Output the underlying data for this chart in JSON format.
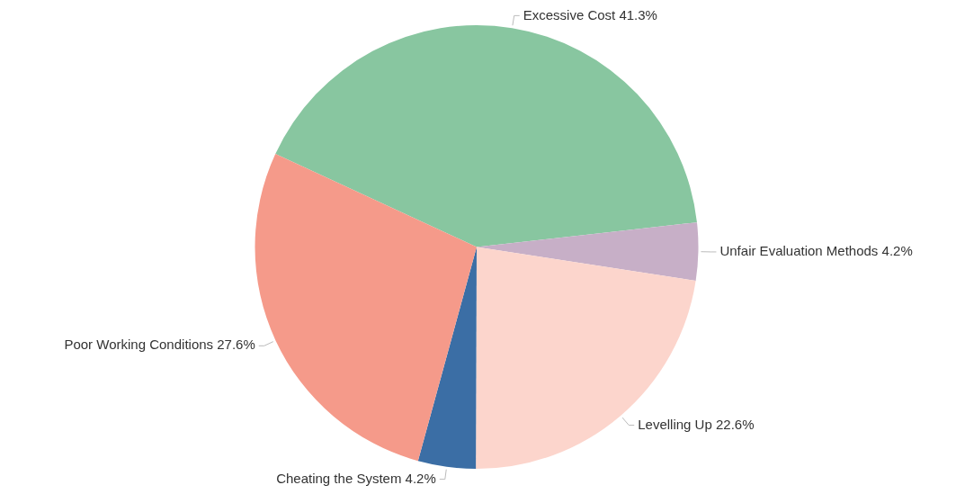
{
  "chart_data": {
    "type": "pie",
    "categories": [
      "Excessive Cost",
      "Unfair Evaluation Methods",
      "Levelling Up",
      "Cheating the System",
      "Poor Working Conditions"
    ],
    "values": [
      41.3,
      4.2,
      22.6,
      4.2,
      27.6
    ],
    "value_labels": [
      "41.3%",
      "4.2%",
      "22.6%",
      "4.2%",
      "27.6%"
    ],
    "colors": [
      "#88c6a0",
      "#c7afc7",
      "#fcd5cc",
      "#3b6ea5",
      "#f59a8a"
    ],
    "legend": false
  }
}
